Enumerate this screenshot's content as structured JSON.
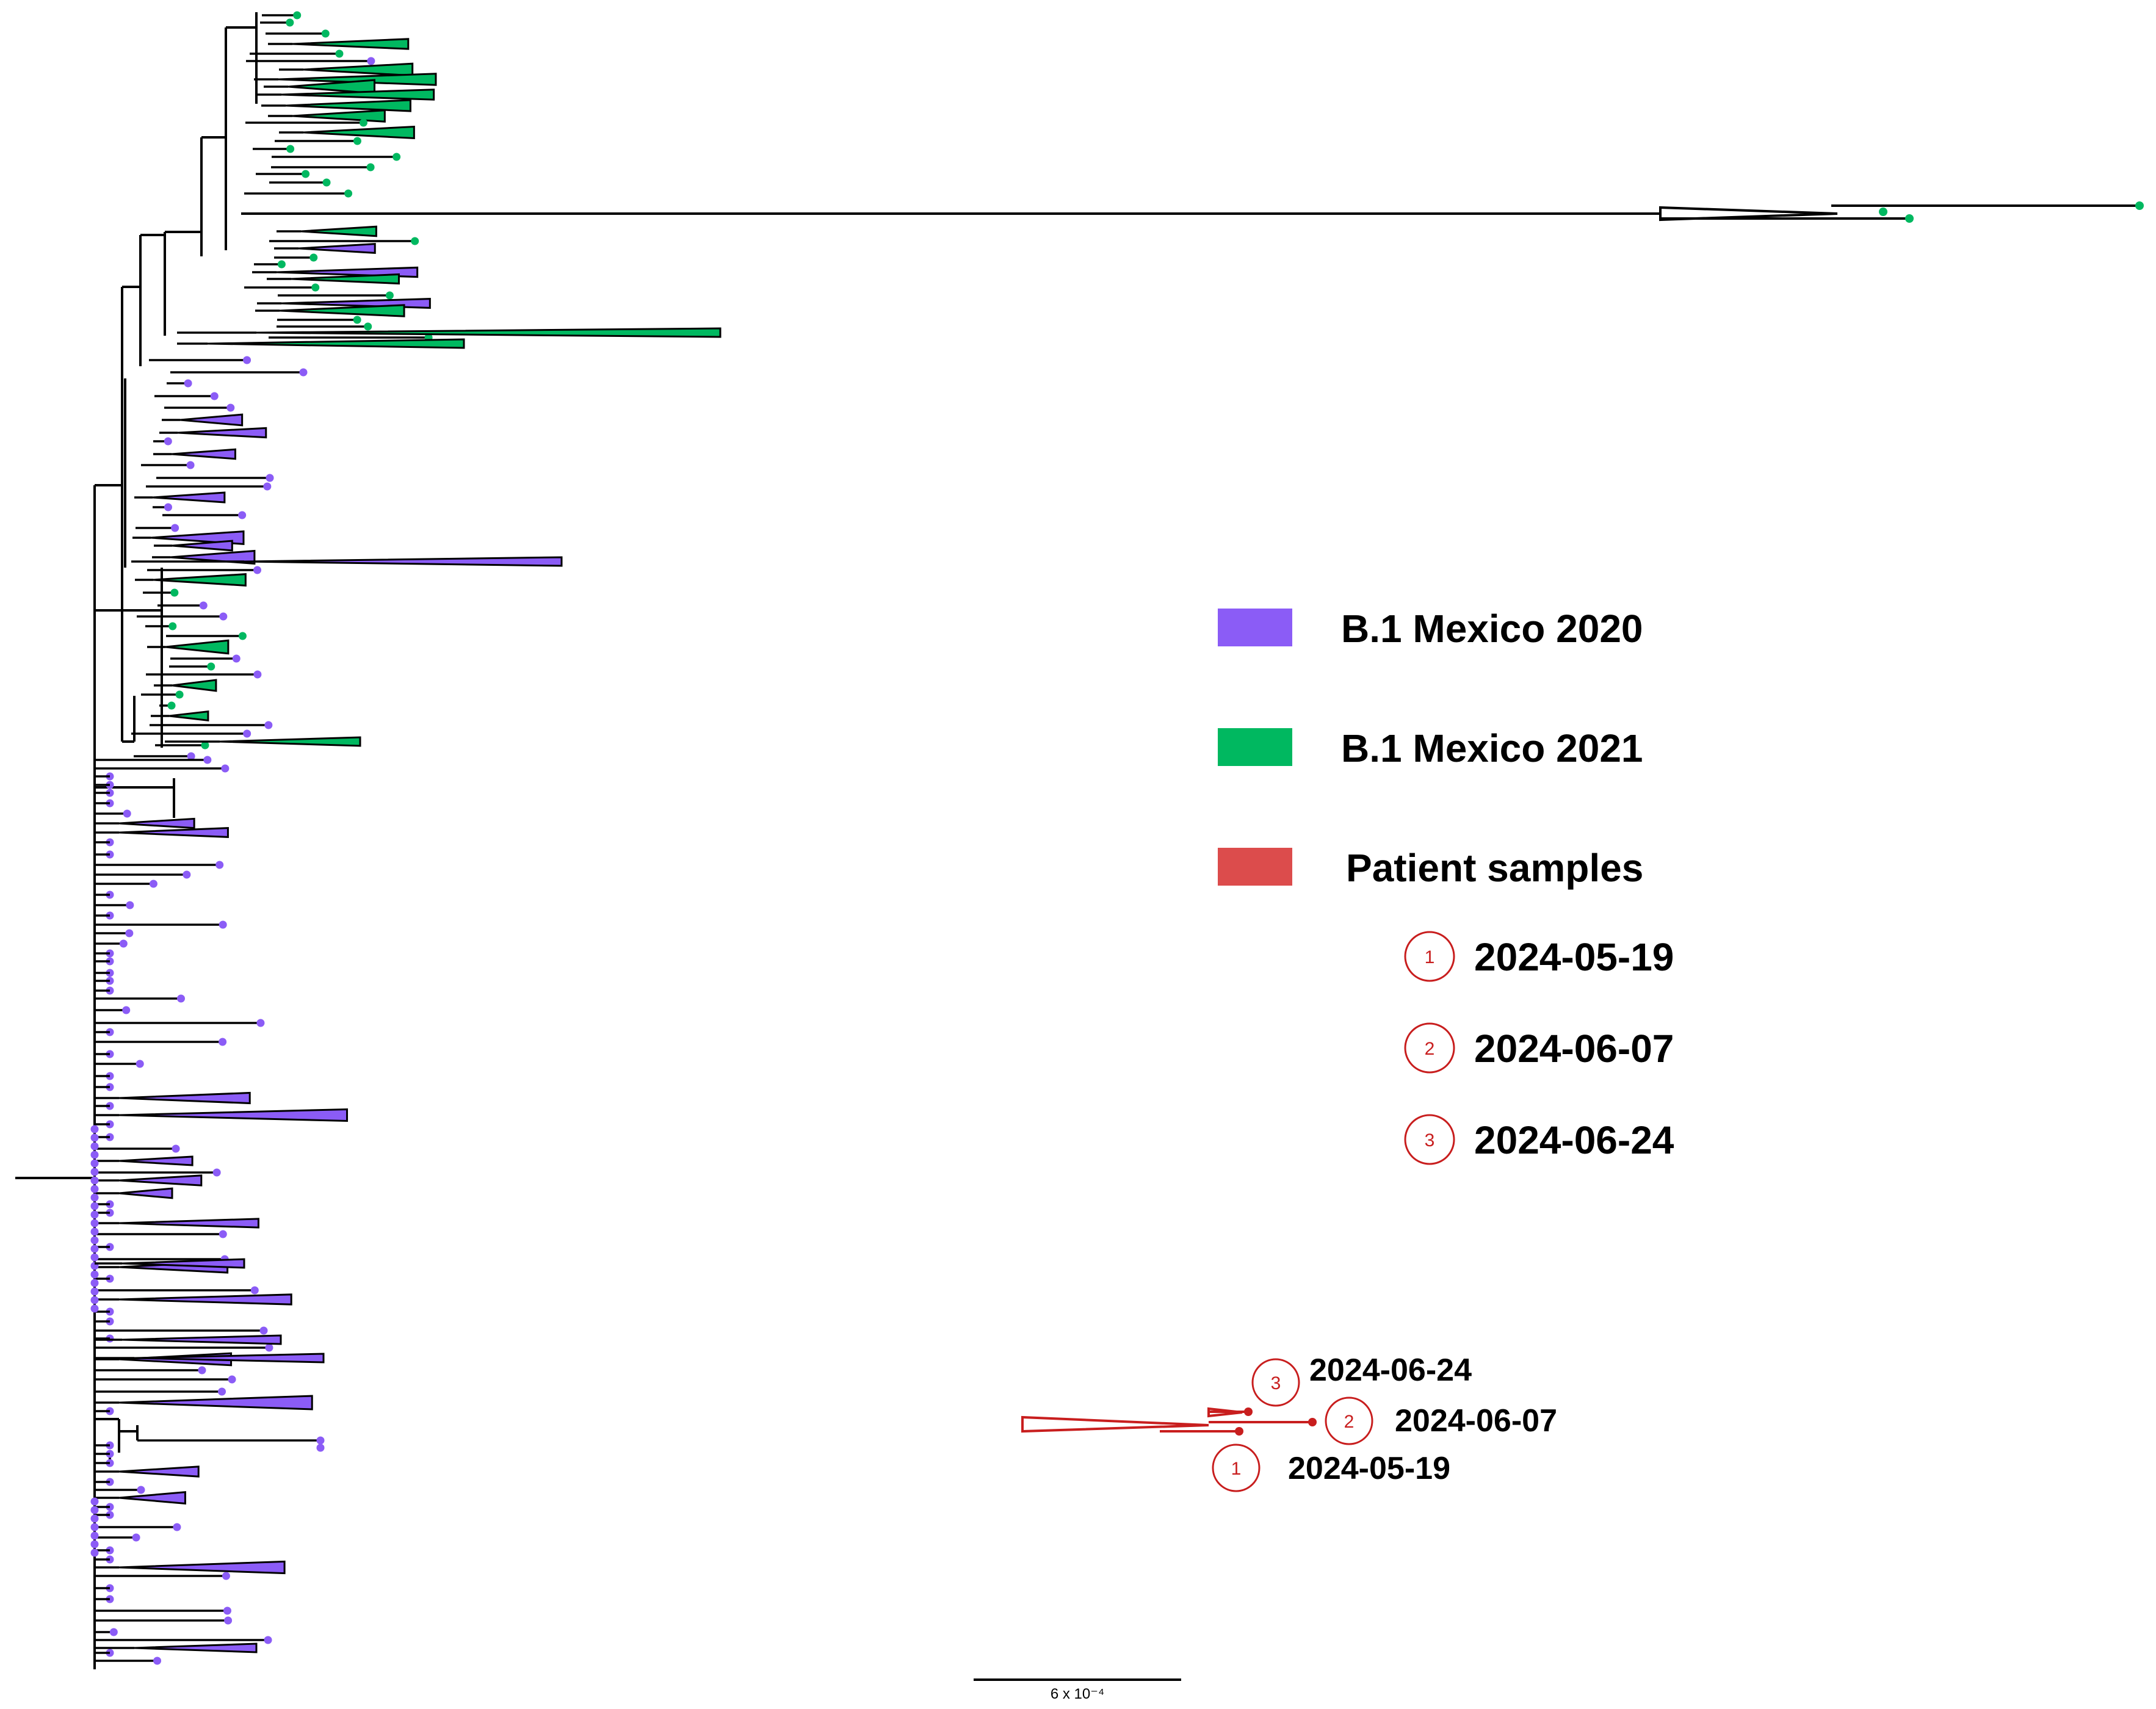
{
  "legend": {
    "items": [
      {
        "label": "B.1 Mexico 2020",
        "color": "#8b5cf6"
      },
      {
        "label": "B.1 Mexico 2021",
        "color": "#00b860"
      },
      {
        "label": "Patient samples",
        "color": "#dc4c4c"
      }
    ],
    "samples": [
      {
        "num": "1",
        "date": "2024-05-19"
      },
      {
        "num": "2",
        "date": "2024-06-07"
      },
      {
        "num": "3",
        "date": "2024-06-24"
      }
    ]
  },
  "patient_tips": [
    {
      "num": "3",
      "date": "2024-06-24"
    },
    {
      "num": "2",
      "date": "2024-06-07"
    },
    {
      "num": "1",
      "date": "2024-05-19"
    }
  ],
  "scale_bar": {
    "label": "6 x 10⁻⁴"
  },
  "colors": {
    "purple": "#8b5cf6",
    "green": "#00b860",
    "red": "#c81e1e",
    "branch": "#000000"
  }
}
